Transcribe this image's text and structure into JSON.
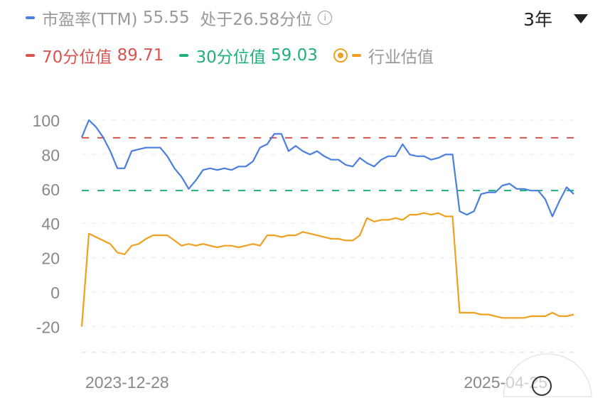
{
  "legend": {
    "pe_label": "市盈率(TTM)",
    "pe_value": "55.55",
    "percentile_text": "处于26.58分位",
    "p70_label": "70分位值",
    "p70_value": "89.71",
    "p30_label": "30分位值",
    "p30_value": "59.03",
    "industry_label": "行业估值"
  },
  "period_selector": {
    "value": "3年"
  },
  "colors": {
    "pe": "#4a7fe0",
    "p70": "#d9534f",
    "p30": "#1fb07a",
    "industry": "#f0a020",
    "axis_text": "#888888"
  },
  "icons": {
    "info": "info-circle-icon",
    "dropdown": "triangle-down-icon",
    "industry_toggle": "radio-ring-icon"
  },
  "chart_data": {
    "type": "line",
    "x_tick_labels": [
      "2023-12-28",
      "2025-04-25"
    ],
    "y_ticks": [
      100,
      80,
      60,
      40,
      20,
      0,
      -20
    ],
    "ylim": [
      -35,
      110
    ],
    "grid": true,
    "reference_lines": [
      {
        "name": "70分位值",
        "value": 89.71
      },
      {
        "name": "30分位值",
        "value": 59.03
      }
    ],
    "series": [
      {
        "name": "市盈率(TTM)",
        "values": [
          90,
          100,
          96,
          90,
          82,
          72,
          72,
          82,
          83,
          84,
          84,
          84,
          79,
          72,
          67,
          60,
          65,
          71,
          72,
          71,
          72,
          71,
          73,
          73,
          76,
          84,
          86,
          92,
          92,
          82,
          85,
          82,
          80,
          82,
          79,
          77,
          77,
          74,
          73,
          78,
          75,
          73,
          77,
          79,
          79,
          86,
          80,
          79,
          79,
          77,
          78,
          80,
          80,
          47,
          45,
          47,
          57,
          58,
          58,
          62,
          63,
          60,
          60,
          59,
          59,
          54,
          44,
          53,
          61,
          57
        ]
      },
      {
        "name": "行业估值",
        "values": [
          -20,
          34,
          32,
          30,
          28,
          23,
          22,
          27,
          28,
          31,
          33,
          33,
          33,
          30,
          27,
          28,
          27,
          28,
          27,
          26,
          27,
          27,
          26,
          27,
          28,
          27,
          33,
          33,
          32,
          33,
          33,
          35,
          34,
          33,
          32,
          31,
          31,
          30,
          30,
          33,
          43,
          41,
          42,
          42,
          43,
          42,
          45,
          45,
          46,
          45,
          46,
          44,
          44,
          -12,
          -12,
          -12,
          -13,
          -13,
          -14,
          -15,
          -15,
          -15,
          -15,
          -14,
          -14,
          -14,
          -12,
          -14,
          -14,
          -13
        ]
      }
    ]
  }
}
